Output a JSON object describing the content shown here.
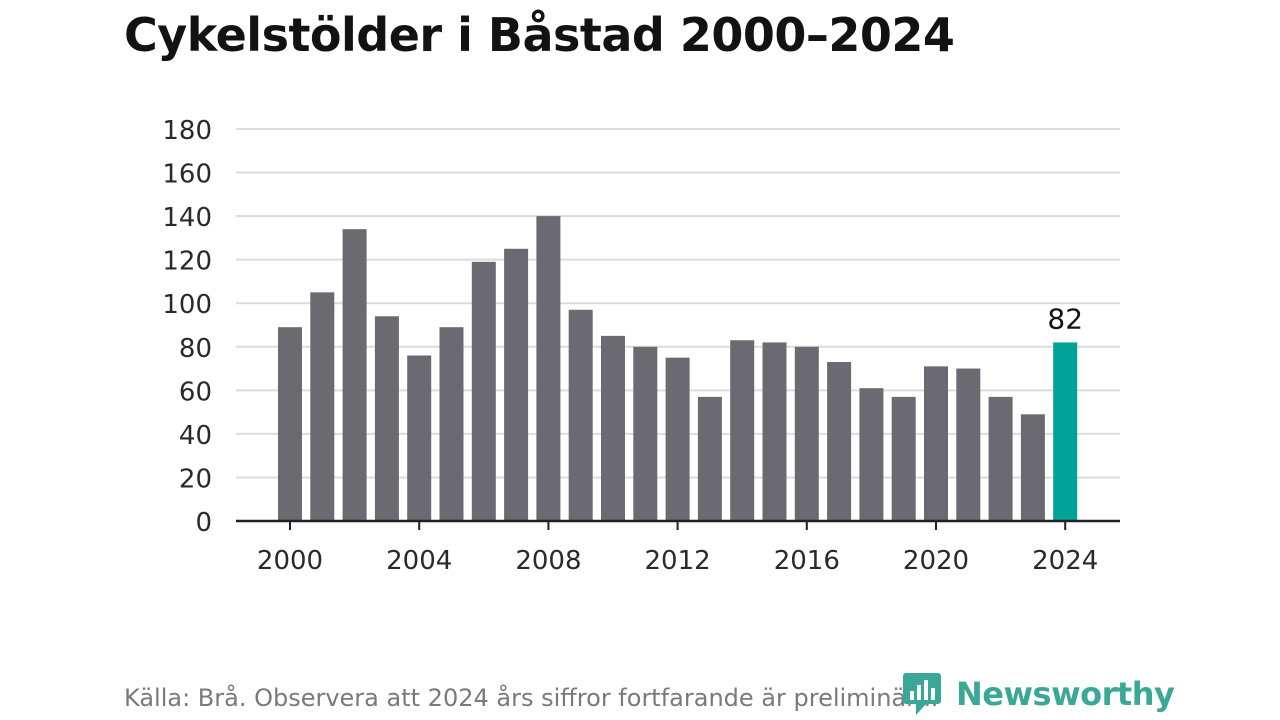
{
  "title": "Cykelstölder i Båstad 2000–2024",
  "footer": {
    "source": "Källa: Brå. Observera att 2024 års siffror fortfarande är preliminära."
  },
  "brand": {
    "name": "Newsworthy",
    "icon": "newsworthy-logo-icon",
    "color": "#3aa797"
  },
  "colors": {
    "bar": "#6b6a70",
    "highlight": "#00a396",
    "grid": "#dcdcdc",
    "axis": "#222222"
  },
  "chart_data": {
    "type": "bar",
    "title": "Cykelstölder i Båstad 2000–2024",
    "xlabel": "",
    "ylabel": "",
    "categories": [
      "2000",
      "2001",
      "2002",
      "2003",
      "2004",
      "2005",
      "2006",
      "2007",
      "2008",
      "2009",
      "2010",
      "2011",
      "2012",
      "2013",
      "2014",
      "2015",
      "2016",
      "2017",
      "2018",
      "2019",
      "2020",
      "2021",
      "2022",
      "2023",
      "2024"
    ],
    "values": [
      89,
      105,
      134,
      94,
      76,
      89,
      119,
      125,
      140,
      97,
      85,
      80,
      75,
      57,
      83,
      82,
      80,
      73,
      61,
      57,
      71,
      70,
      57,
      49,
      82
    ],
    "ylim": [
      0,
      180
    ],
    "yticks": [
      "0",
      "20",
      "40",
      "60",
      "80",
      "100",
      "120",
      "140",
      "160",
      "180"
    ],
    "xticks": [
      "2000",
      "2004",
      "2008",
      "2012",
      "2016",
      "2020",
      "2024"
    ],
    "highlight": {
      "category": "2024",
      "label": "82"
    },
    "grid": true,
    "legend": "none"
  }
}
